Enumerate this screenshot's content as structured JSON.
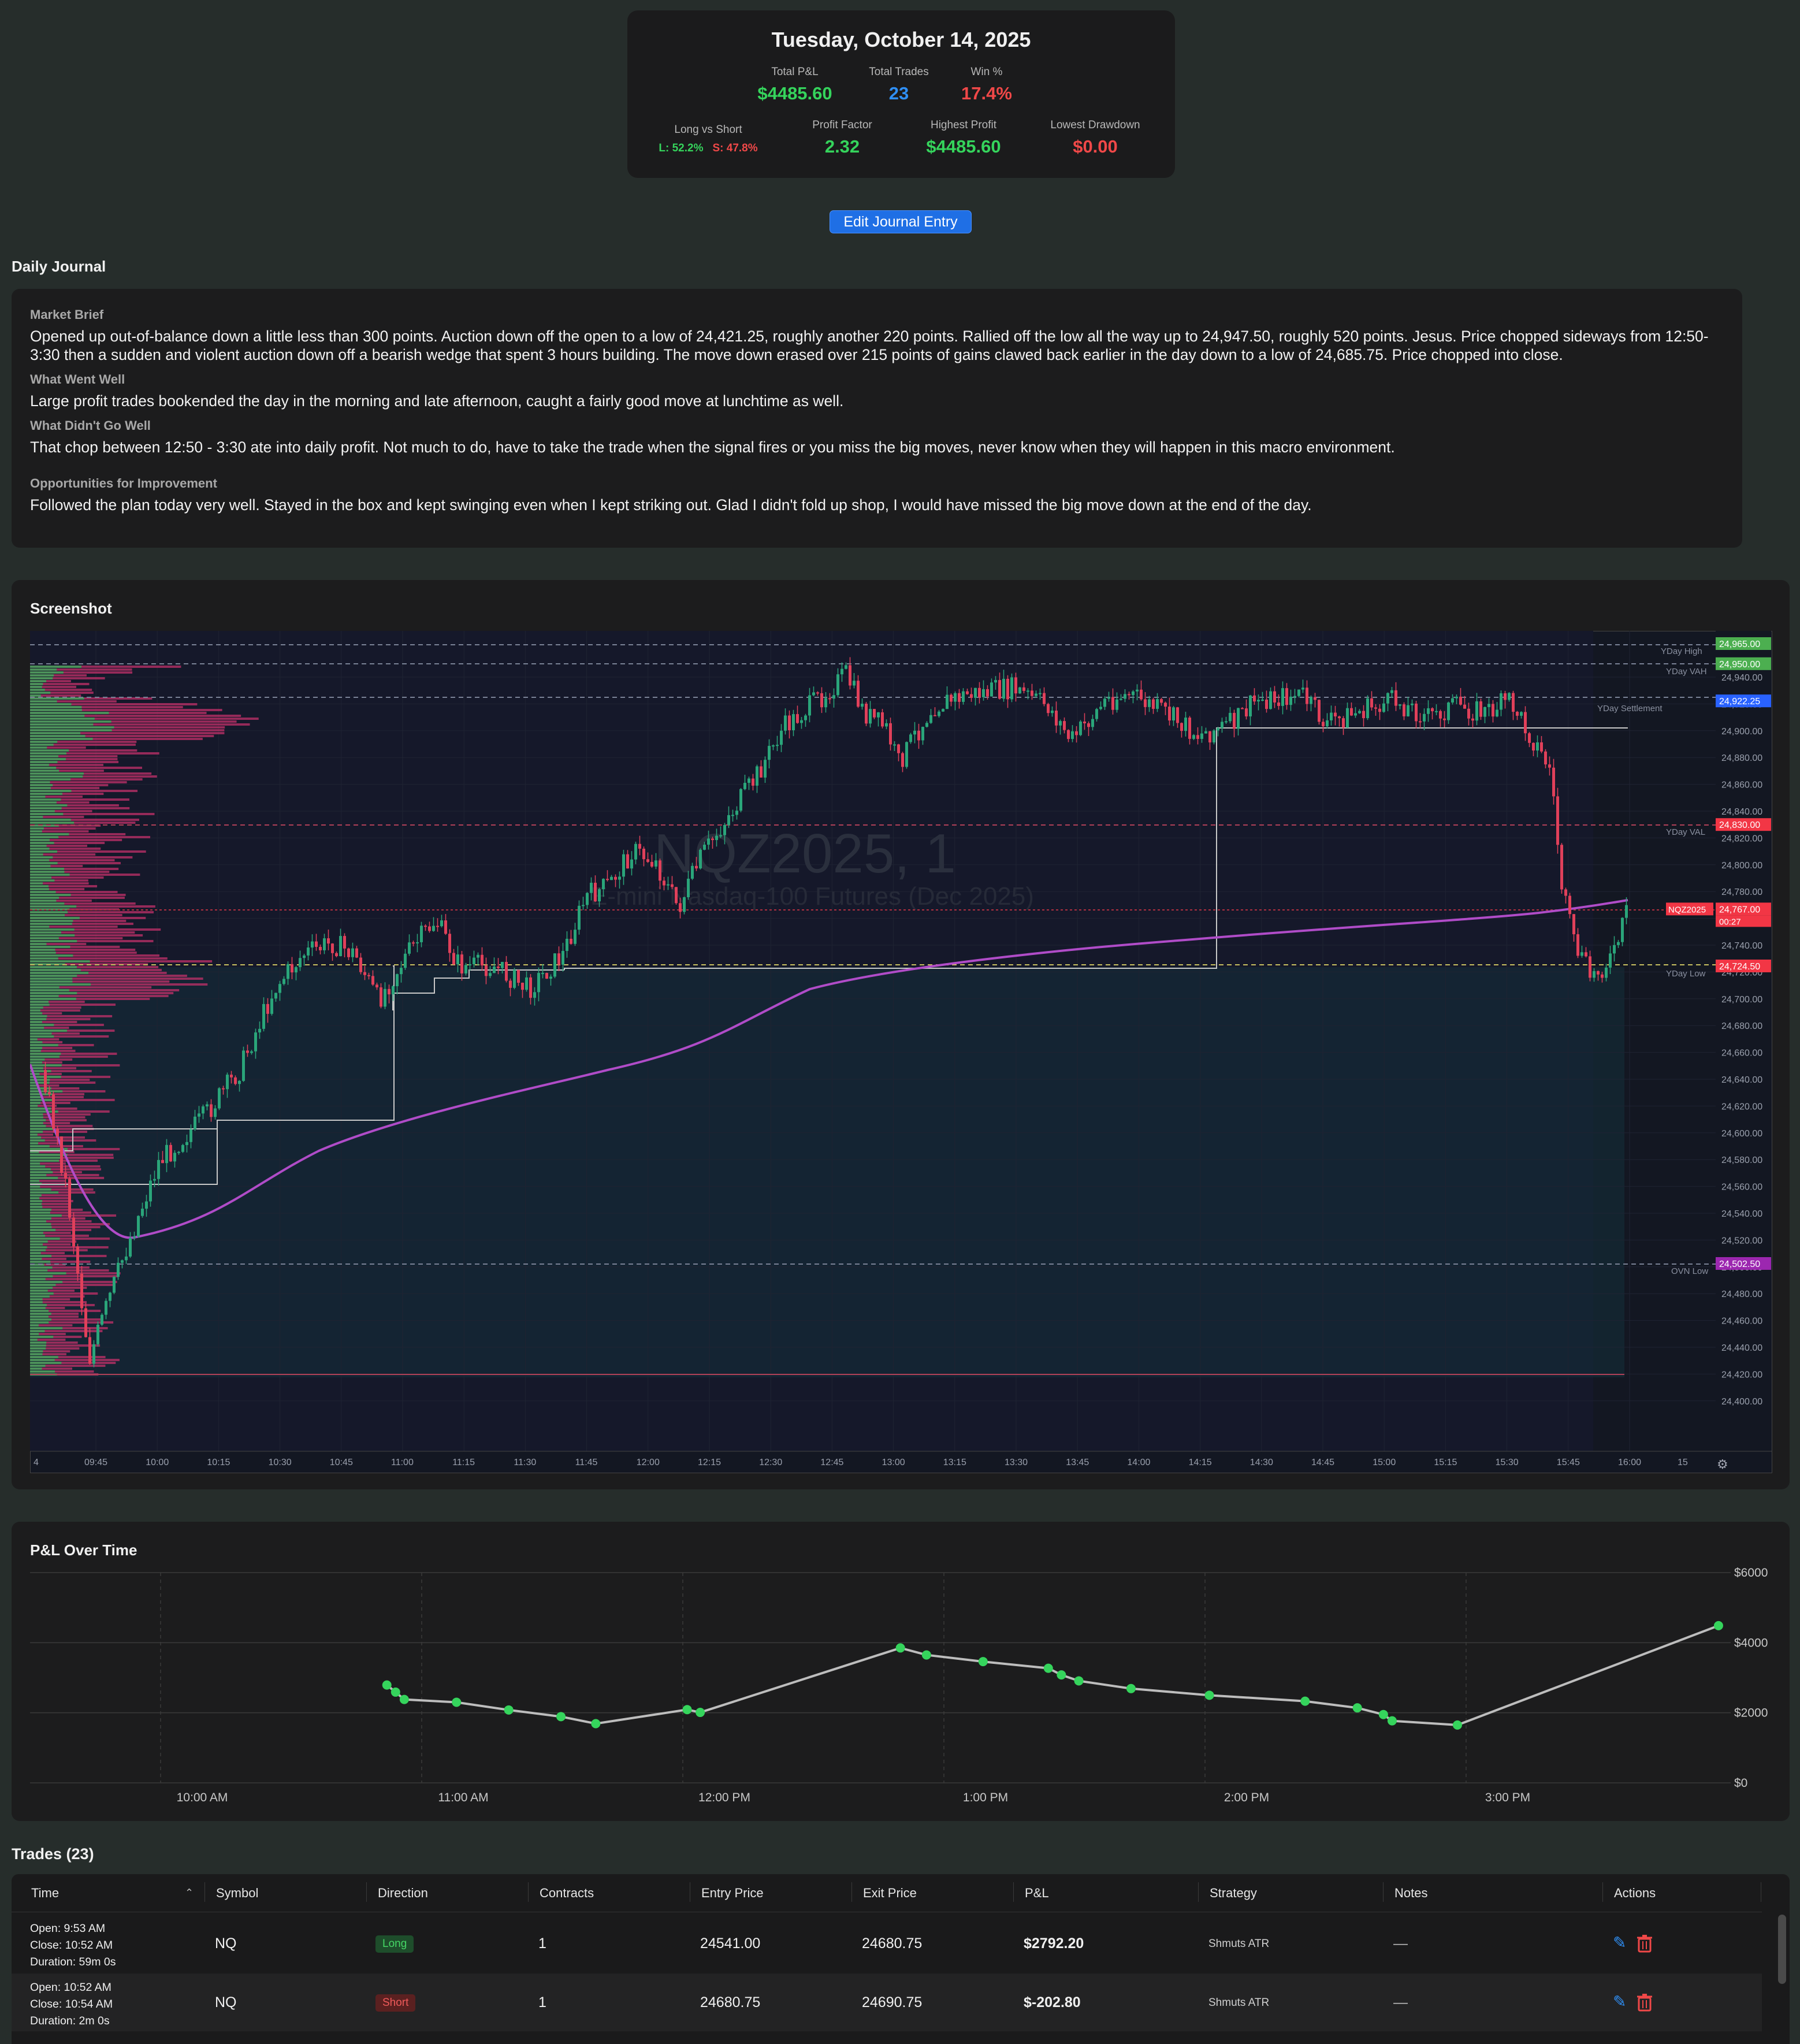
{
  "summary": {
    "date": "Tuesday, October 14, 2025",
    "total_pnl_label": "Total P&L",
    "total_pnl": "$4485.60",
    "total_trades_label": "Total Trades",
    "total_trades": "23",
    "win_pct_label": "Win %",
    "win_pct": "17.4%",
    "long_short_label": "Long vs Short",
    "long_pct": "L: 52.2%",
    "short_pct": "S: 47.8%",
    "profit_factor_label": "Profit Factor",
    "profit_factor": "2.32",
    "highest_profit_label": "Highest Profit",
    "highest_profit": "$4485.60",
    "lowest_drawdown_label": "Lowest Drawdown",
    "lowest_drawdown": "$0.00"
  },
  "edit_button": "Edit Journal Entry",
  "journal": {
    "title": "Daily Journal",
    "market_brief_label": "Market Brief",
    "market_brief": "Opened up out-of-balance down a little less than 300 points. Auction down off the open to a low of 24,421.25, roughly another 220 points. Rallied off the low all the way up to 24,947.50, roughly 520 points. Jesus. Price chopped sideways from 12:50-3:30 then a sudden and violent auction down off a bearish wedge that spent 3 hours building. The move down erased over 215 points of gains clawed back earlier in the day down to a low of 24,685.75. Price chopped into close.",
    "went_well_label": "What Went Well",
    "went_well": "Large profit trades bookended the day in the morning and late afternoon, caught a fairly good move at lunchtime as well.",
    "didnt_go_well_label": "What Didn't Go Well",
    "didnt_go_well": "That chop between 12:50 - 3:30 ate into daily profit. Not much to do, have to take the trade when the signal fires or you miss the big moves, never know when they will happen in this macro environment.",
    "improvement_label": "Opportunities for Improvement",
    "improvement": "Followed the plan today very well. Stayed in the box and kept swinging even when I kept striking out. Glad I didn't fold up shop, I would have missed the big move down at the end of the day."
  },
  "screenshot": {
    "title": "Screenshot",
    "watermark_symbol": "NQZ2025, 1",
    "watermark_name": "E-mini Nasdaq-100 Futures (Dec 2025)",
    "price_ticks": [
      "24,940.00",
      "24,920.00",
      "24,900.00",
      "24,880.00",
      "24,860.00",
      "24,840.00",
      "24,820.00",
      "24,800.00",
      "24,780.00",
      "24,760.00",
      "24,740.00",
      "24,720.00",
      "24,700.00",
      "24,680.00",
      "24,660.00",
      "24,640.00",
      "24,620.00",
      "24,600.00",
      "24,580.00",
      "24,560.00",
      "24,540.00",
      "24,520.00",
      "24,500.00",
      "24,480.00",
      "24,460.00",
      "24,440.00",
      "24,420.00",
      "24,400.00"
    ],
    "time_ticks": [
      "4",
      "09:45",
      "10:00",
      "10:15",
      "10:30",
      "10:45",
      "11:00",
      "11:15",
      "11:30",
      "11:45",
      "12:00",
      "12:15",
      "12:30",
      "12:45",
      "13:00",
      "13:15",
      "13:30",
      "13:45",
      "14:00",
      "14:15",
      "14:30",
      "14:45",
      "15:00",
      "15:15",
      "15:30",
      "15:45",
      "16:00",
      "15"
    ],
    "levels": [
      {
        "name": "YDay High",
        "price": "24,965.00",
        "color": "#4caf50"
      },
      {
        "name": "YDay VAH",
        "price": "24,950.00",
        "color": "#4caf50"
      },
      {
        "name": "YDay Settlement",
        "price": "24,922.25",
        "color": "#2962ff"
      },
      {
        "name": "YDay VAL",
        "price": "24,830.00",
        "color": "#f23645"
      },
      {
        "name": "NQZ2025",
        "price": "24,767.00",
        "color": "#f23645"
      },
      {
        "name": "YDay Low",
        "price": "24,724.50",
        "color": "#f23645"
      },
      {
        "name": "OVN Low",
        "price": "24,502.50",
        "color": "#9c27b0"
      }
    ],
    "countdown": "00:27"
  },
  "pnl_chart": {
    "title": "P&L Over Time",
    "chart_data": {
      "type": "line",
      "title": "P&L Over Time",
      "x_ticks": [
        "10:00 AM",
        "11:00 AM",
        "12:00 PM",
        "1:00 PM",
        "2:00 PM",
        "3:00 PM"
      ],
      "y_ticks": [
        "$0",
        "$2000",
        "$4000",
        "$6000"
      ],
      "ylim": [
        0,
        6000
      ],
      "series": [
        {
          "x": [
            "10:52",
            "10:54",
            "10:56",
            "11:08",
            "11:20",
            "11:32",
            "11:40",
            "12:01",
            "12:04",
            "12:50",
            "12:56",
            "1:09",
            "1:24",
            "1:27",
            "1:31",
            "1:43",
            "2:01",
            "2:23",
            "2:35",
            "2:41",
            "2:43",
            "2:58",
            "3:58"
          ],
          "values": [
            2792.2,
            2589.4,
            2380.0,
            2300.0,
            2080.0,
            1890.0,
            1690.0,
            2090.0,
            2010.0,
            3850.0,
            3650.0,
            3460.0,
            3270.0,
            3080.0,
            2910.0,
            2690.0,
            2500.0,
            2330.0,
            2140.0,
            1950.0,
            1770.0,
            1650.0,
            4485.6
          ]
        }
      ],
      "grid": true,
      "color": "#35d45c"
    }
  },
  "trades": {
    "title": "Trades (23)",
    "columns": [
      "Time",
      "Symbol",
      "Direction",
      "Contracts",
      "Entry Price",
      "Exit Price",
      "P&L",
      "Strategy",
      "Notes",
      "Actions"
    ],
    "rows": [
      {
        "open": "Open: 9:53 AM",
        "close": "Close: 10:52 AM",
        "duration": "Duration: 59m 0s",
        "symbol": "NQ",
        "direction": "Long",
        "contracts": "1",
        "entry": "24541.00",
        "exit": "24680.75",
        "pnl": "$2792.20",
        "strategy": "Shmuts ATR",
        "notes": "—"
      },
      {
        "open": "Open: 10:52 AM",
        "close": "Close: 10:54 AM",
        "duration": "Duration: 2m 0s",
        "symbol": "NQ",
        "direction": "Short",
        "contracts": "1",
        "entry": "24680.75",
        "exit": "24690.75",
        "pnl": "$-202.80",
        "strategy": "Shmuts ATR",
        "notes": "—"
      }
    ]
  }
}
